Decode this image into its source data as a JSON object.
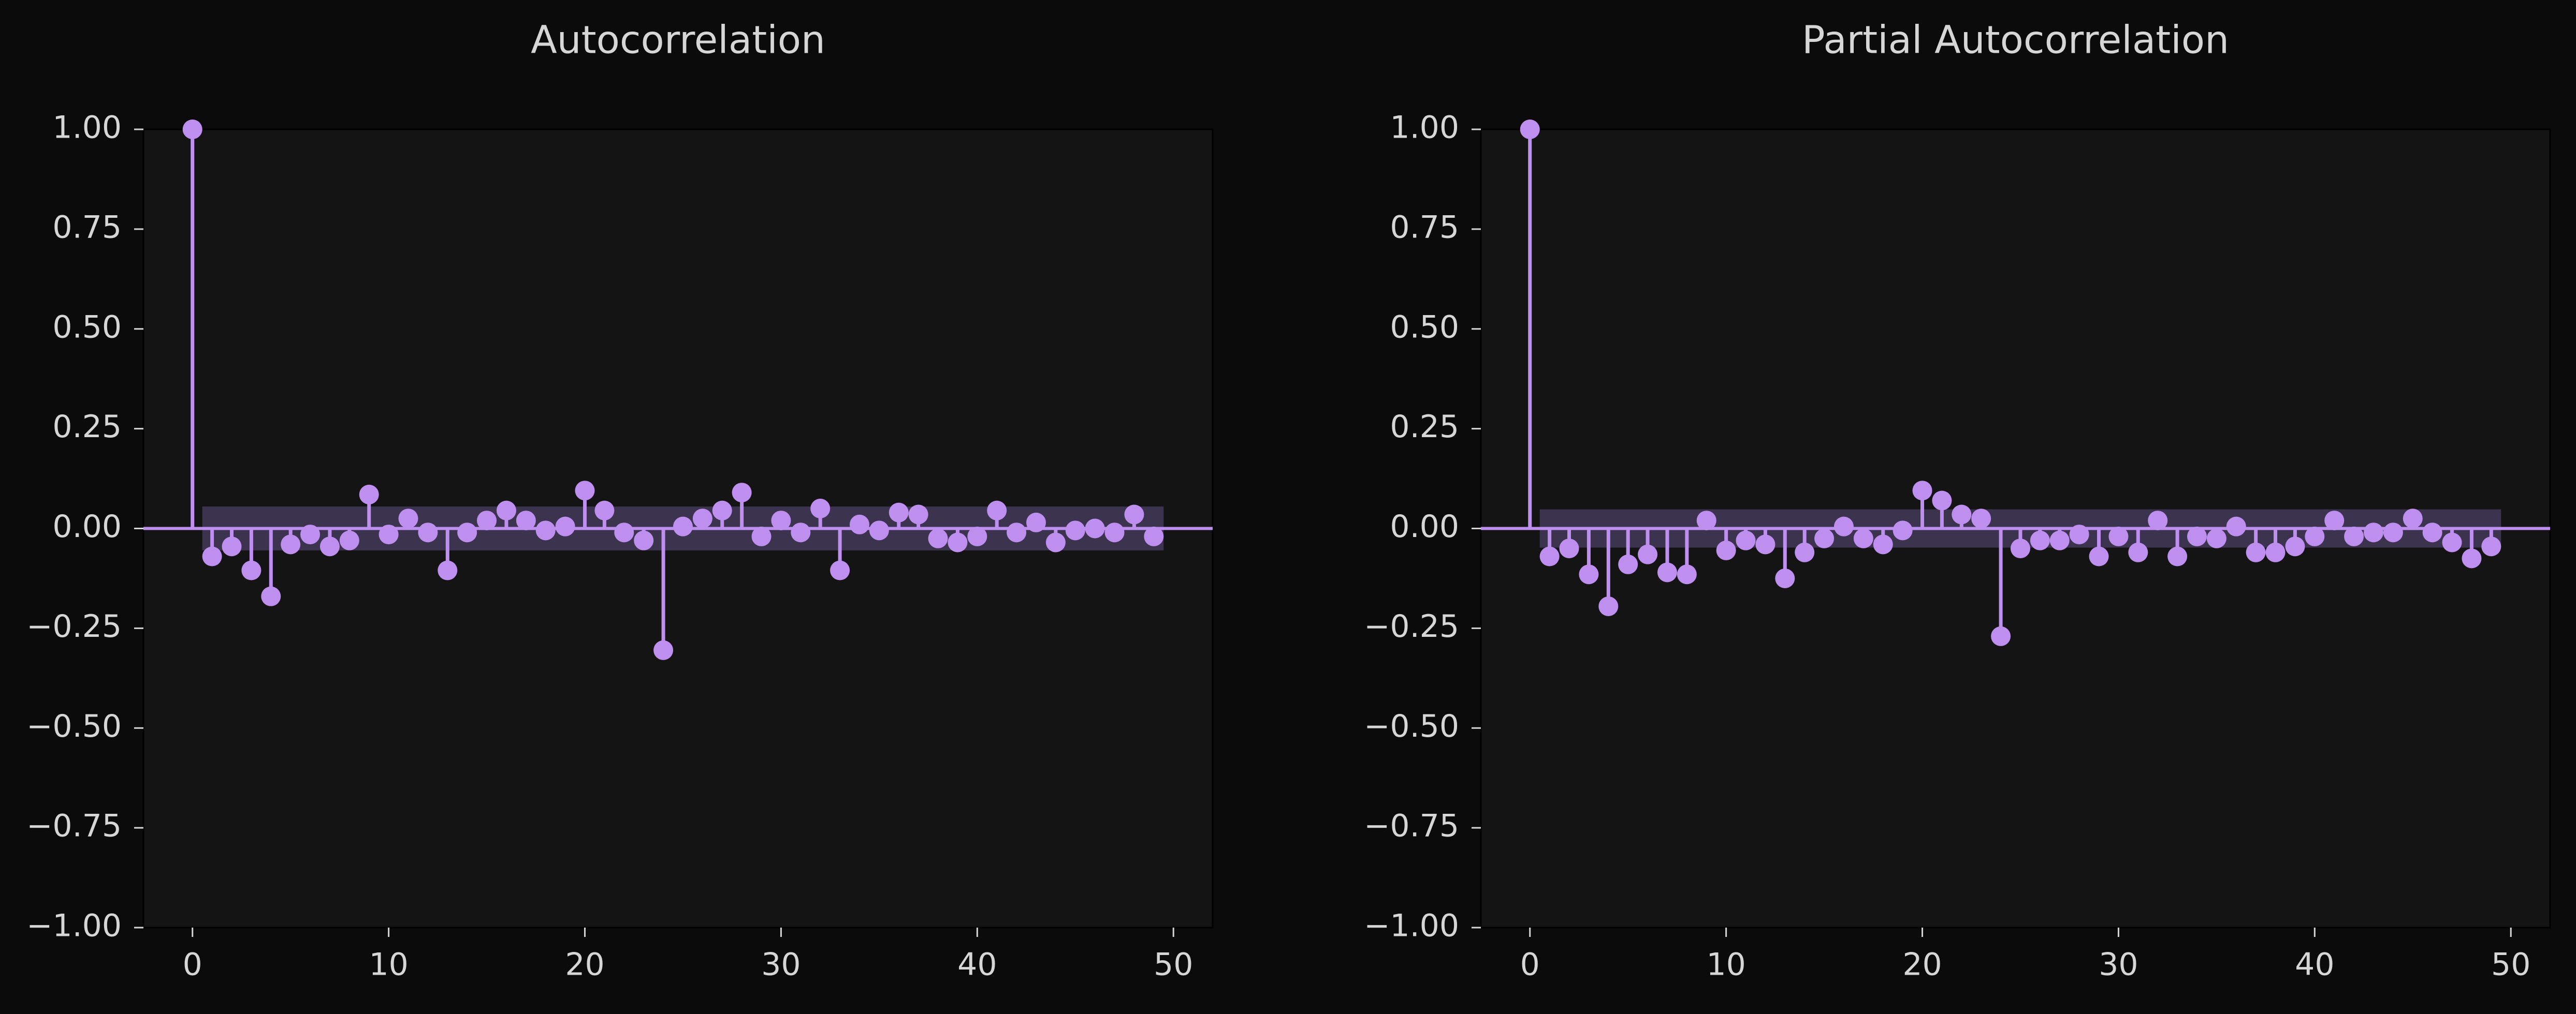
{
  "theme": {
    "background": "#0b0b0c",
    "panel": "#141415",
    "text": "#d6d6d6",
    "accent": "#bf8ff0",
    "confidence_band": "#4a3d63"
  },
  "chart_data": [
    {
      "type": "stem",
      "title": "Autocorrelation",
      "xlabel": "",
      "ylabel": "",
      "xlim": [
        -2.5,
        52
      ],
      "ylim": [
        -1.0,
        1.0
      ],
      "xticks": [
        0,
        10,
        20,
        30,
        40,
        50
      ],
      "yticks": [
        1.0,
        0.75,
        0.5,
        0.25,
        0.0,
        -0.25,
        -0.5,
        -0.75,
        -1.0
      ],
      "xtick_labels": [
        "0",
        "10",
        "20",
        "30",
        "40",
        "50"
      ],
      "ytick_labels": [
        "1.00",
        "0.75",
        "0.50",
        "0.25",
        "0.00",
        "−0.25",
        "−0.50",
        "−0.75",
        "−1.00"
      ],
      "grid": false,
      "lags": [
        0,
        1,
        2,
        3,
        4,
        5,
        6,
        7,
        8,
        9,
        10,
        11,
        12,
        13,
        14,
        15,
        16,
        17,
        18,
        19,
        20,
        21,
        22,
        23,
        24,
        25,
        26,
        27,
        28,
        29,
        30,
        31,
        32,
        33,
        34,
        35,
        36,
        37,
        38,
        39,
        40,
        41,
        42,
        43,
        44,
        45,
        46,
        47,
        48,
        49
      ],
      "values": [
        1.0,
        -0.07,
        -0.045,
        -0.105,
        -0.17,
        -0.04,
        -0.015,
        -0.045,
        -0.03,
        0.085,
        -0.015,
        0.025,
        -0.01,
        -0.105,
        -0.01,
        0.02,
        0.045,
        0.02,
        -0.005,
        0.005,
        0.095,
        0.045,
        -0.01,
        -0.03,
        -0.305,
        0.005,
        0.025,
        0.045,
        0.09,
        -0.02,
        0.02,
        -0.01,
        0.05,
        -0.105,
        0.01,
        -0.005,
        0.04,
        0.035,
        -0.025,
        -0.035,
        -0.02,
        0.045,
        -0.01,
        0.015,
        -0.035,
        -0.005,
        0.0,
        -0.01,
        0.035,
        -0.02
      ],
      "confidence_interval": 0.055
    },
    {
      "type": "stem",
      "title": "Partial Autocorrelation",
      "xlabel": "",
      "ylabel": "",
      "xlim": [
        -2.5,
        52
      ],
      "ylim": [
        -1.0,
        1.0
      ],
      "xticks": [
        0,
        10,
        20,
        30,
        40,
        50
      ],
      "yticks": [
        1.0,
        0.75,
        0.5,
        0.25,
        0.0,
        -0.25,
        -0.5,
        -0.75,
        -1.0
      ],
      "xtick_labels": [
        "0",
        "10",
        "20",
        "30",
        "40",
        "50"
      ],
      "ytick_labels": [
        "1.00",
        "0.75",
        "0.50",
        "0.25",
        "0.00",
        "−0.25",
        "−0.50",
        "−0.75",
        "−1.00"
      ],
      "grid": false,
      "lags": [
        0,
        1,
        2,
        3,
        4,
        5,
        6,
        7,
        8,
        9,
        10,
        11,
        12,
        13,
        14,
        15,
        16,
        17,
        18,
        19,
        20,
        21,
        22,
        23,
        24,
        25,
        26,
        27,
        28,
        29,
        30,
        31,
        32,
        33,
        34,
        35,
        36,
        37,
        38,
        39,
        40,
        41,
        42,
        43,
        44,
        45,
        46,
        47,
        48,
        49
      ],
      "values": [
        1.0,
        -0.07,
        -0.05,
        -0.115,
        -0.195,
        -0.09,
        -0.065,
        -0.11,
        -0.115,
        0.02,
        -0.055,
        -0.03,
        -0.04,
        -0.125,
        -0.06,
        -0.025,
        0.005,
        -0.025,
        -0.04,
        -0.005,
        0.095,
        0.07,
        0.035,
        0.025,
        -0.27,
        -0.05,
        -0.03,
        -0.03,
        -0.015,
        -0.07,
        -0.02,
        -0.06,
        0.02,
        -0.07,
        -0.02,
        -0.025,
        0.005,
        -0.06,
        -0.06,
        -0.045,
        -0.02,
        0.02,
        -0.02,
        -0.01,
        -0.01,
        0.025,
        -0.01,
        -0.035,
        -0.075,
        -0.045
      ],
      "confidence_interval": 0.048
    }
  ]
}
